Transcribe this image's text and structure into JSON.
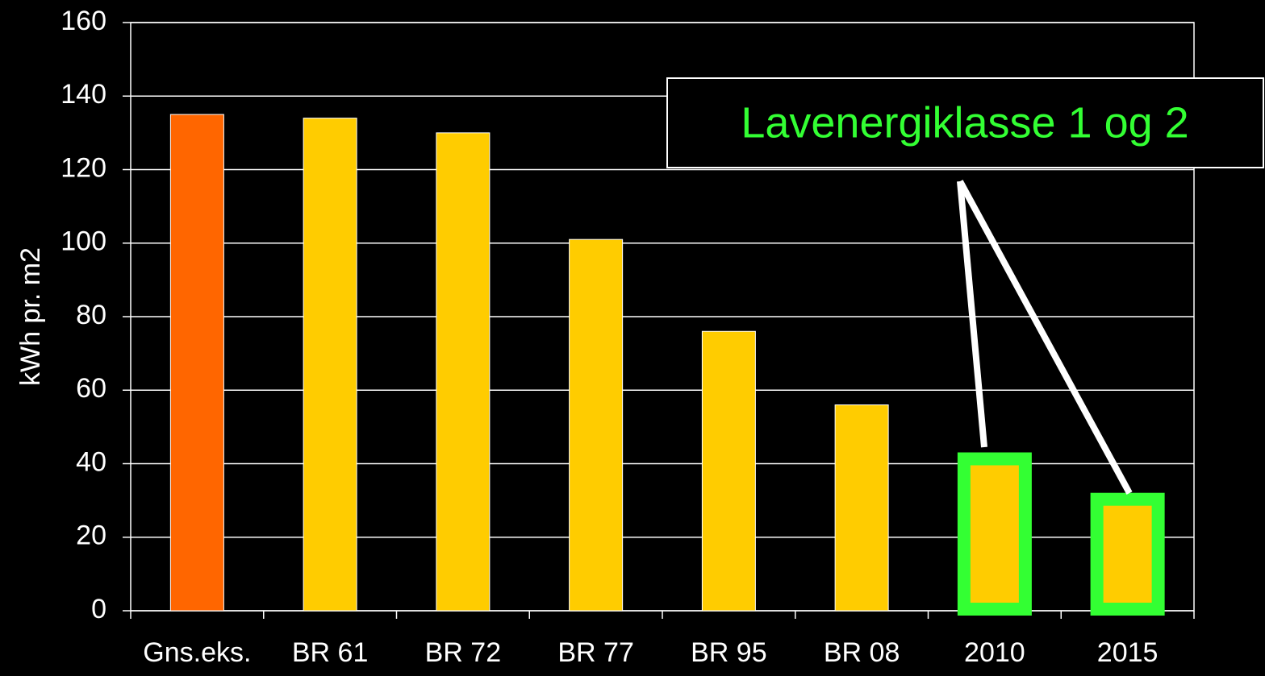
{
  "chart_data": {
    "type": "bar",
    "ylabel": "kWh pr. m2",
    "categories": [
      "Gns.eks.",
      "BR 61",
      "BR 72",
      "BR 77",
      "BR 95",
      "BR 08",
      "2010",
      "2015"
    ],
    "values": [
      135,
      134,
      130,
      101,
      76,
      56,
      40,
      29
    ],
    "colors": [
      "#ff6600",
      "#ffcc00",
      "#ffcc00",
      "#ffcc00",
      "#ffcc00",
      "#ffcc00",
      "#ffcc00",
      "#ffcc00"
    ],
    "edgecolors": [
      null,
      null,
      null,
      null,
      null,
      null,
      "#33ff33",
      "#33ff33"
    ],
    "annotation": "Lavenergiklasse 1 og 2",
    "annotation_color": "#33ff33",
    "ylim": [
      0,
      160
    ],
    "yticks": [
      0,
      20,
      40,
      60,
      80,
      100,
      120,
      140,
      160
    ],
    "grid": true
  }
}
